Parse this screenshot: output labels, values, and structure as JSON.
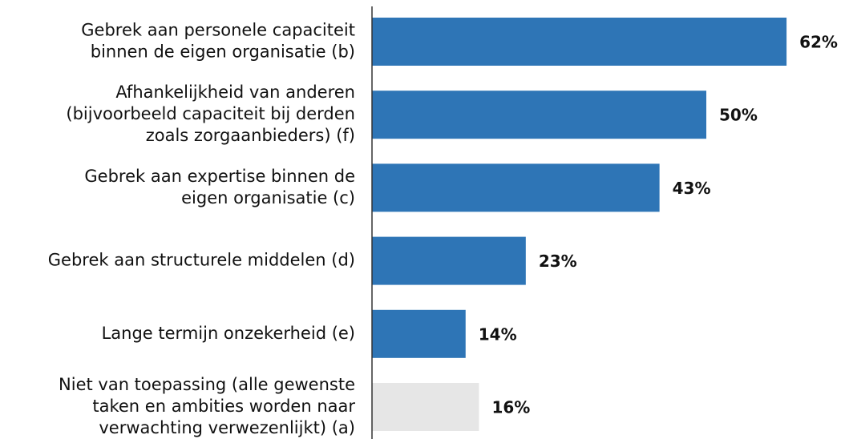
{
  "chart_data": {
    "type": "bar",
    "orientation": "horizontal",
    "categories": [
      [
        "Gebrek aan personele capaciteit",
        "binnen de eigen organisatie (b)"
      ],
      [
        "Afhankelijkheid van anderen",
        "(bijvoorbeeld capaciteit bij derden",
        "zoals zorgaanbieders) (f)"
      ],
      [
        "Gebrek aan expertise binnen de",
        "eigen organisatie (c)"
      ],
      [
        "Gebrek aan structurele middelen (d)"
      ],
      [
        "Lange termijn onzekerheid (e)"
      ],
      [
        "Niet van toepassing (alle gewenste",
        "taken en ambities worden naar",
        "verwachting verwezenlijkt) (a)"
      ]
    ],
    "values": [
      62,
      50,
      43,
      23,
      14,
      16
    ],
    "value_labels": [
      "62%",
      "50%",
      "43%",
      "23%",
      "14%",
      "16%"
    ],
    "colors": [
      "#2e75b6",
      "#2e75b6",
      "#2e75b6",
      "#2e75b6",
      "#2e75b6",
      "#e6e6e6"
    ]
  }
}
